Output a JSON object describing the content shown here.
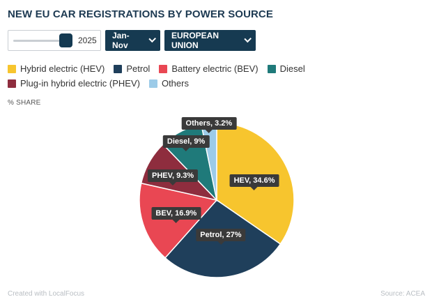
{
  "title": "NEW EU CAR REGISTRATIONS BY POWER SOURCE",
  "controls": {
    "year": "2025",
    "period": "Jan-Nov",
    "region": "EUROPEAN UNION"
  },
  "share_label": "% SHARE",
  "footer": {
    "credit": "Created with LocalFocus",
    "source": "Source:  ACEA"
  },
  "colors": {
    "hev": "#f7c52e",
    "petrol": "#1f3f5b",
    "bev": "#e94753",
    "diesel": "#1f7a7a",
    "phev": "#8e2d3e",
    "others": "#9ccbe8"
  },
  "chart_data": {
    "type": "pie",
    "legend": [
      {
        "key": "hev",
        "label": "Hybrid electric (HEV)"
      },
      {
        "key": "petrol",
        "label": "Petrol"
      },
      {
        "key": "bev",
        "label": "Battery electric (BEV)"
      },
      {
        "key": "diesel",
        "label": "Diesel"
      },
      {
        "key": "phev",
        "label": "Plug-in hybrid electric (PHEV)"
      },
      {
        "key": "others",
        "label": "Others"
      }
    ],
    "slices": [
      {
        "key": "hev",
        "label": "HEV, 34.6%",
        "value": 34.6
      },
      {
        "key": "petrol",
        "label": "Petrol, 27%",
        "value": 27
      },
      {
        "key": "bev",
        "label": "BEV, 16.9%",
        "value": 16.9
      },
      {
        "key": "phev",
        "label": "PHEV, 9.3%",
        "value": 9.3
      },
      {
        "key": "diesel",
        "label": "Diesel, 9%",
        "value": 9
      },
      {
        "key": "others",
        "label": "Others, 3.2%",
        "value": 3.2
      }
    ]
  }
}
